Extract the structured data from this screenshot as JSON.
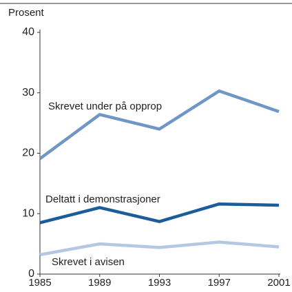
{
  "chart_data": {
    "type": "line",
    "y_label": "Prosent",
    "x": [
      1985,
      1989,
      1993,
      1997,
      2001
    ],
    "series": [
      {
        "name": "Skrevet under på opprop",
        "color": "#6f96c4",
        "values": [
          19.1,
          26.4,
          24.0,
          30.3,
          26.9
        ]
      },
      {
        "name": "Deltatt i demonstrasjoner",
        "color": "#1b5d9c",
        "values": [
          8.5,
          11.0,
          8.7,
          11.6,
          11.4
        ]
      },
      {
        "name": "Skrevet i avisen",
        "color": "#b3c8e2",
        "values": [
          3.2,
          5.0,
          4.4,
          5.3,
          4.5
        ]
      }
    ],
    "xlim": [
      1985,
      2001
    ],
    "xticks": [
      1985,
      1989,
      1993,
      1997,
      2001
    ],
    "ylim": [
      0,
      40
    ],
    "yticks": [
      0,
      10,
      20,
      30,
      40
    ],
    "grid": false
  }
}
